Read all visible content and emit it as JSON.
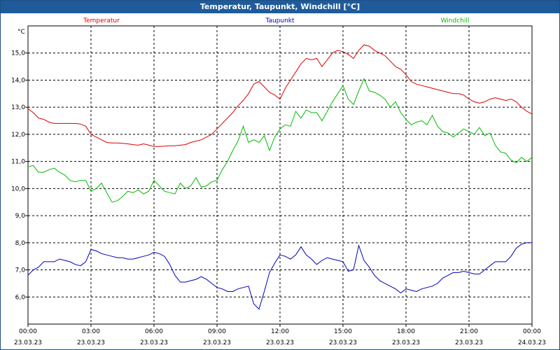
{
  "window": {
    "title": "Temperatur, Taupunkt, Windchill [°C]"
  },
  "chart_data": {
    "type": "line",
    "title": "Temperatur, Taupunkt, Windchill [°C]",
    "ylabel": "°C",
    "xlabel": "",
    "ylim": [
      5.0,
      16.0
    ],
    "xlim_hours": [
      0,
      24
    ],
    "grid": true,
    "y_ticks": [
      "6,0",
      "7,0",
      "8,0",
      "9,0",
      "10,0",
      "11,0",
      "12,0",
      "13,0",
      "14,0",
      "15,0"
    ],
    "y_tick_values": [
      6,
      7,
      8,
      9,
      10,
      11,
      12,
      13,
      14,
      15
    ],
    "x_tick_values": [
      0,
      3,
      6,
      9,
      12,
      15,
      18,
      21,
      24
    ],
    "x_ticks": [
      {
        "time": "00:00",
        "date": "23.03.23"
      },
      {
        "time": "03:00",
        "date": "23.03.23"
      },
      {
        "time": "06:00",
        "date": "23.03.23"
      },
      {
        "time": "09:00",
        "date": "23.03.23"
      },
      {
        "time": "12:00",
        "date": "23.03.23"
      },
      {
        "time": "15:00",
        "date": "23.03.23"
      },
      {
        "time": "18:00",
        "date": "23.03.23"
      },
      {
        "time": "21:00",
        "date": "23.03.23"
      },
      {
        "time": "00:00",
        "date": "24.03.23"
      }
    ],
    "series": [
      {
        "name": "Temperatur",
        "color": "#dd0000",
        "x": [
          0,
          0.25,
          0.5,
          0.75,
          1,
          1.25,
          1.5,
          1.75,
          2,
          2.25,
          2.5,
          2.75,
          3,
          3.25,
          3.5,
          3.75,
          4,
          4.25,
          4.5,
          4.75,
          5,
          5.25,
          5.5,
          5.75,
          6,
          6.25,
          6.5,
          6.75,
          7,
          7.25,
          7.5,
          7.75,
          8,
          8.25,
          8.5,
          8.75,
          9,
          9.25,
          9.5,
          9.75,
          10,
          10.25,
          10.5,
          10.75,
          11,
          11.25,
          11.5,
          11.75,
          12,
          12.25,
          12.5,
          12.75,
          13,
          13.25,
          13.5,
          13.75,
          14,
          14.25,
          14.5,
          14.75,
          15,
          15.25,
          15.5,
          15.75,
          16,
          16.25,
          16.5,
          16.75,
          17,
          17.25,
          17.5,
          17.75,
          18,
          18.25,
          18.5,
          18.75,
          19,
          19.25,
          19.5,
          19.75,
          20,
          20.25,
          20.5,
          20.75,
          21,
          21.25,
          21.5,
          21.75,
          22,
          22.25,
          22.5,
          22.75,
          23,
          23.25,
          23.5,
          23.75,
          24
        ],
        "values": [
          12.95,
          12.8,
          12.6,
          12.55,
          12.45,
          12.4,
          12.4,
          12.4,
          12.4,
          12.4,
          12.38,
          12.3,
          12.0,
          11.9,
          11.8,
          11.7,
          11.68,
          11.68,
          11.67,
          11.65,
          11.62,
          11.6,
          11.65,
          11.6,
          11.55,
          11.55,
          11.56,
          11.58,
          11.58,
          11.6,
          11.62,
          11.7,
          11.75,
          11.8,
          11.9,
          12.0,
          12.2,
          12.4,
          12.6,
          12.8,
          13.05,
          13.25,
          13.5,
          13.85,
          13.95,
          13.75,
          13.55,
          13.45,
          13.3,
          13.7,
          14.0,
          14.3,
          14.6,
          14.8,
          14.75,
          14.8,
          14.5,
          14.75,
          15.0,
          15.1,
          15.05,
          14.95,
          14.8,
          15.1,
          15.3,
          15.25,
          15.1,
          15.0,
          14.9,
          14.7,
          14.5,
          14.4,
          14.2,
          13.95,
          13.85,
          13.8,
          13.75,
          13.7,
          13.65,
          13.6,
          13.55,
          13.5,
          13.5,
          13.45,
          13.3,
          13.2,
          13.15,
          13.2,
          13.3,
          13.35,
          13.3,
          13.25,
          13.3,
          13.2,
          13.0,
          12.85,
          12.75
        ]
      },
      {
        "name": "Taupunkt",
        "color": "#0000bb",
        "x": [
          0,
          0.25,
          0.5,
          0.75,
          1,
          1.25,
          1.5,
          1.75,
          2,
          2.25,
          2.5,
          2.75,
          3,
          3.25,
          3.5,
          3.75,
          4,
          4.25,
          4.5,
          4.75,
          5,
          5.25,
          5.5,
          5.75,
          6,
          6.25,
          6.5,
          6.75,
          7,
          7.25,
          7.5,
          7.75,
          8,
          8.25,
          8.5,
          8.75,
          9,
          9.25,
          9.5,
          9.75,
          10,
          10.25,
          10.5,
          10.75,
          11,
          11.25,
          11.5,
          11.75,
          12,
          12.25,
          12.5,
          12.75,
          13,
          13.25,
          13.5,
          13.75,
          14,
          14.25,
          14.5,
          14.75,
          15,
          15.25,
          15.5,
          15.75,
          16,
          16.25,
          16.5,
          16.75,
          17,
          17.25,
          17.5,
          17.75,
          18,
          18.25,
          18.5,
          18.75,
          19,
          19.25,
          19.5,
          19.75,
          20,
          20.25,
          20.5,
          20.75,
          21,
          21.25,
          21.5,
          21.75,
          22,
          22.25,
          22.5,
          22.75,
          23,
          23.25,
          23.5,
          23.75,
          24
        ],
        "values": [
          6.8,
          7.0,
          7.1,
          7.3,
          7.3,
          7.3,
          7.4,
          7.35,
          7.3,
          7.2,
          7.15,
          7.3,
          7.75,
          7.7,
          7.6,
          7.55,
          7.5,
          7.45,
          7.45,
          7.4,
          7.4,
          7.45,
          7.5,
          7.55,
          7.65,
          7.6,
          7.5,
          7.2,
          6.8,
          6.55,
          6.55,
          6.6,
          6.65,
          6.75,
          6.65,
          6.5,
          6.35,
          6.3,
          6.2,
          6.2,
          6.3,
          6.35,
          6.4,
          5.75,
          5.55,
          6.2,
          6.9,
          7.25,
          7.55,
          7.5,
          7.4,
          7.55,
          7.85,
          7.55,
          7.4,
          7.2,
          7.35,
          7.45,
          7.4,
          7.35,
          7.3,
          6.95,
          7.0,
          7.9,
          7.35,
          7.1,
          6.8,
          6.6,
          6.5,
          6.4,
          6.3,
          6.15,
          6.3,
          6.25,
          6.2,
          6.3,
          6.35,
          6.4,
          6.5,
          6.7,
          6.8,
          6.9,
          6.9,
          6.95,
          6.9,
          6.85,
          6.85,
          7.0,
          7.15,
          7.3,
          7.3,
          7.3,
          7.5,
          7.8,
          7.95,
          8.0,
          8.0
        ]
      },
      {
        "name": "Windchill",
        "color": "#00bb00",
        "x": [
          0,
          0.25,
          0.5,
          0.75,
          1,
          1.25,
          1.5,
          1.75,
          2,
          2.25,
          2.5,
          2.75,
          3,
          3.25,
          3.5,
          3.75,
          4,
          4.25,
          4.5,
          4.75,
          5,
          5.25,
          5.5,
          5.75,
          6,
          6.25,
          6.5,
          6.75,
          7,
          7.25,
          7.5,
          7.75,
          8,
          8.25,
          8.5,
          8.75,
          9,
          9.25,
          9.5,
          9.75,
          10,
          10.25,
          10.5,
          10.75,
          11,
          11.25,
          11.5,
          11.75,
          12,
          12.25,
          12.5,
          12.75,
          13,
          13.25,
          13.5,
          13.75,
          14,
          14.25,
          14.5,
          14.75,
          15,
          15.25,
          15.5,
          15.75,
          16,
          16.25,
          16.5,
          16.75,
          17,
          17.25,
          17.5,
          17.75,
          18,
          18.25,
          18.5,
          18.75,
          19,
          19.25,
          19.5,
          19.75,
          20,
          20.25,
          20.5,
          20.75,
          21,
          21.25,
          21.5,
          21.75,
          22,
          22.25,
          22.5,
          22.75,
          23,
          23.25,
          23.5,
          23.75,
          24
        ],
        "values": [
          10.8,
          10.85,
          10.6,
          10.6,
          10.7,
          10.75,
          10.6,
          10.5,
          10.3,
          10.25,
          10.3,
          10.3,
          9.9,
          10.0,
          10.2,
          9.85,
          9.5,
          9.55,
          9.7,
          9.9,
          9.85,
          9.95,
          9.8,
          9.9,
          10.3,
          10.1,
          9.9,
          9.85,
          9.8,
          10.2,
          10.0,
          10.1,
          10.4,
          10.05,
          10.1,
          10.25,
          10.3,
          10.7,
          11.0,
          11.4,
          11.75,
          12.3,
          11.7,
          11.8,
          11.7,
          11.95,
          11.4,
          11.9,
          12.2,
          12.35,
          12.3,
          12.85,
          12.6,
          12.9,
          12.8,
          12.8,
          12.5,
          12.85,
          13.2,
          13.5,
          13.8,
          13.3,
          13.1,
          13.6,
          14.05,
          13.6,
          13.55,
          13.45,
          13.3,
          13.0,
          13.2,
          12.8,
          12.55,
          12.35,
          12.45,
          12.5,
          12.35,
          12.7,
          12.3,
          12.1,
          12.05,
          11.9,
          12.05,
          12.2,
          12.1,
          12.0,
          12.25,
          11.95,
          12.05,
          11.6,
          11.35,
          11.3,
          11.05,
          10.95,
          11.15,
          11.0,
          11.15
        ]
      }
    ]
  }
}
